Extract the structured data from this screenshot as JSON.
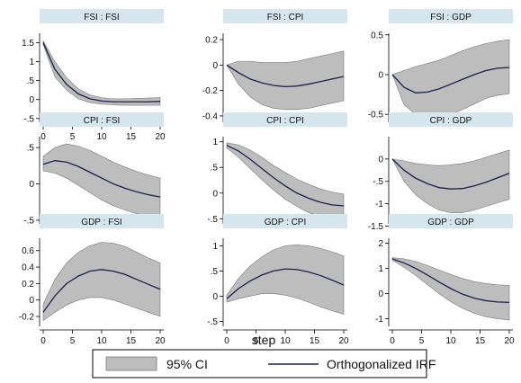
{
  "chart_data": {
    "type": "line",
    "xlabel": "step",
    "legend": {
      "placement": "bottom-center",
      "entries": [
        {
          "label": "95% CI",
          "kind": "band",
          "color": "#bdbdbd"
        },
        {
          "label": "Orthogonalized IRF",
          "kind": "line",
          "color": "#1a1f4d"
        }
      ]
    },
    "colors": {
      "band": "#bdbdbd",
      "band_edge": "#7a7a7a",
      "line": "#1a1f4d",
      "header": "#d6e6ee"
    },
    "grid": false,
    "panels": [
      {
        "title": "FSI : FSI",
        "ylim": [
          -0.6,
          1.75
        ],
        "yticks": [
          -0.5,
          0,
          0.5,
          1,
          1.5
        ],
        "ytick_labels": [
          "-.5",
          "0",
          ".5",
          "1",
          "1.5"
        ],
        "xticks": [
          0,
          5,
          10,
          15,
          20
        ],
        "x": [
          0,
          2,
          4,
          6,
          8,
          10,
          12,
          14,
          16,
          18,
          20
        ],
        "irf": [
          1.5,
          0.8,
          0.4,
          0.15,
          0.02,
          -0.04,
          -0.06,
          -0.06,
          -0.06,
          -0.06,
          -0.05
        ],
        "lower": [
          1.45,
          0.6,
          0.25,
          0.02,
          -0.08,
          -0.12,
          -0.14,
          -0.15,
          -0.15,
          -0.15,
          -0.15
        ],
        "upper": [
          1.55,
          1.0,
          0.58,
          0.28,
          0.12,
          0.05,
          0.02,
          0.02,
          0.03,
          0.04,
          0.05
        ]
      },
      {
        "title": "FSI : CPI",
        "ylim": [
          -0.45,
          0.25
        ],
        "yticks": [
          -0.4,
          -0.2,
          0,
          0.2
        ],
        "ytick_labels": [
          "-0.4",
          "-0.2",
          "0",
          "0.2"
        ],
        "xticks": [],
        "x": [
          0,
          2,
          4,
          6,
          8,
          10,
          12,
          14,
          16,
          18,
          20
        ],
        "irf": [
          0,
          -0.06,
          -0.11,
          -0.14,
          -0.16,
          -0.17,
          -0.165,
          -0.15,
          -0.13,
          -0.11,
          -0.09
        ],
        "lower": [
          0,
          -0.15,
          -0.25,
          -0.31,
          -0.34,
          -0.35,
          -0.35,
          -0.34,
          -0.32,
          -0.3,
          -0.28
        ],
        "upper": [
          0,
          0.03,
          0.03,
          0.02,
          0.02,
          0.02,
          0.03,
          0.05,
          0.07,
          0.09,
          0.11
        ]
      },
      {
        "title": "FSI : GDP",
        "ylim": [
          -0.6,
          0.52
        ],
        "yticks": [
          -0.5,
          0,
          0.5
        ],
        "ytick_labels": [
          "-0.5",
          "0",
          "0.5"
        ],
        "xticks": [],
        "x": [
          0,
          2,
          4,
          6,
          8,
          10,
          12,
          14,
          16,
          18,
          20
        ],
        "irf": [
          0,
          -0.16,
          -0.23,
          -0.22,
          -0.18,
          -0.12,
          -0.06,
          0.0,
          0.05,
          0.08,
          0.09
        ],
        "lower": [
          0,
          -0.38,
          -0.5,
          -0.55,
          -0.55,
          -0.5,
          -0.44,
          -0.37,
          -0.3,
          -0.26,
          -0.24
        ],
        "upper": [
          0,
          0.05,
          0.1,
          0.14,
          0.18,
          0.24,
          0.3,
          0.35,
          0.39,
          0.42,
          0.44
        ]
      },
      {
        "title": "CPI : FSI",
        "ylim": [
          -0.55,
          0.65
        ],
        "yticks": [
          -0.5,
          0,
          0.5
        ],
        "ytick_labels": [
          "-.5",
          "0",
          ".5"
        ],
        "xticks": [],
        "x": [
          0,
          2,
          4,
          6,
          8,
          10,
          12,
          14,
          16,
          18,
          20
        ],
        "irf": [
          0.27,
          0.32,
          0.3,
          0.24,
          0.16,
          0.08,
          0.0,
          -0.06,
          -0.11,
          -0.15,
          -0.18
        ],
        "lower": [
          0.18,
          0.15,
          0.08,
          -0.02,
          -0.12,
          -0.22,
          -0.3,
          -0.36,
          -0.41,
          -0.44,
          -0.47
        ],
        "upper": [
          0.38,
          0.5,
          0.55,
          0.52,
          0.46,
          0.38,
          0.3,
          0.23,
          0.17,
          0.12,
          0.08
        ]
      },
      {
        "title": "CPI : CPI",
        "ylim": [
          -0.6,
          1.1
        ],
        "yticks": [
          -0.5,
          0,
          0.5,
          1
        ],
        "ytick_labels": [
          "-.5",
          "0",
          ".5",
          "1"
        ],
        "xticks": [],
        "x": [
          0,
          2,
          4,
          6,
          8,
          10,
          12,
          14,
          16,
          18,
          20
        ],
        "irf": [
          0.93,
          0.82,
          0.66,
          0.48,
          0.3,
          0.14,
          0.0,
          -0.1,
          -0.18,
          -0.23,
          -0.25
        ],
        "lower": [
          0.88,
          0.7,
          0.48,
          0.26,
          0.06,
          -0.12,
          -0.26,
          -0.38,
          -0.46,
          -0.51,
          -0.54
        ],
        "upper": [
          0.98,
          0.94,
          0.84,
          0.7,
          0.54,
          0.4,
          0.27,
          0.17,
          0.08,
          0.02,
          -0.02
        ]
      },
      {
        "title": "CPI : GDP",
        "ylim": [
          -1.45,
          0.5
        ],
        "yticks": [
          -1.5,
          -1,
          -0.5,
          0
        ],
        "ytick_labels": [
          "-1.5",
          "-1",
          "-.5",
          "0"
        ],
        "xticks": [],
        "x": [
          0,
          2,
          4,
          6,
          8,
          10,
          12,
          14,
          16,
          18,
          20
        ],
        "irf": [
          0,
          -0.25,
          -0.43,
          -0.55,
          -0.64,
          -0.67,
          -0.66,
          -0.6,
          -0.52,
          -0.42,
          -0.32
        ],
        "lower": [
          0,
          -0.5,
          -0.8,
          -1.0,
          -1.14,
          -1.2,
          -1.2,
          -1.14,
          -1.06,
          -0.98,
          -0.9
        ],
        "upper": [
          0,
          -0.04,
          -0.1,
          -0.13,
          -0.15,
          -0.13,
          -0.1,
          -0.04,
          0.04,
          0.12,
          0.2
        ]
      },
      {
        "title": "GDP : FSI",
        "ylim": [
          -0.32,
          0.75
        ],
        "yticks": [
          -0.2,
          0,
          0.2,
          0.4,
          0.6
        ],
        "ytick_labels": [
          "-0.2",
          "0",
          "0.2",
          "0.4",
          "0.6"
        ],
        "xticks": [
          0,
          5,
          10,
          15,
          20
        ],
        "x": [
          0,
          2,
          4,
          6,
          8,
          10,
          12,
          14,
          16,
          18,
          20
        ],
        "irf": [
          -0.15,
          0.05,
          0.2,
          0.29,
          0.35,
          0.37,
          0.35,
          0.31,
          0.25,
          0.19,
          0.13
        ],
        "lower": [
          -0.25,
          -0.15,
          -0.06,
          0.0,
          0.03,
          0.03,
          0.0,
          -0.05,
          -0.1,
          -0.15,
          -0.2
        ],
        "upper": [
          -0.05,
          0.25,
          0.45,
          0.58,
          0.66,
          0.7,
          0.69,
          0.65,
          0.58,
          0.51,
          0.45
        ]
      },
      {
        "title": "GDP : CPI",
        "ylim": [
          -0.6,
          1.15
        ],
        "yticks": [
          -0.5,
          0,
          0.5,
          1
        ],
        "ytick_labels": [
          "-.5",
          "0",
          ".5",
          "1"
        ],
        "xticks": [
          0,
          5,
          10,
          15,
          20
        ],
        "x": [
          0,
          2,
          4,
          6,
          8,
          10,
          12,
          14,
          16,
          18,
          20
        ],
        "irf": [
          -0.05,
          0.15,
          0.3,
          0.42,
          0.5,
          0.54,
          0.53,
          0.48,
          0.41,
          0.32,
          0.22
        ],
        "lower": [
          -0.12,
          -0.05,
          0.0,
          0.05,
          0.05,
          0.02,
          -0.04,
          -0.12,
          -0.21,
          -0.29,
          -0.36
        ],
        "upper": [
          0.02,
          0.35,
          0.6,
          0.78,
          0.92,
          1.0,
          1.02,
          1.0,
          0.95,
          0.88,
          0.8
        ]
      },
      {
        "title": "GDP : GDP",
        "ylim": [
          -1.3,
          2.2
        ],
        "yticks": [
          -1,
          0,
          1,
          2
        ],
        "ytick_labels": [
          "-1",
          "0",
          "1",
          "2"
        ],
        "xticks": [
          0,
          5,
          10,
          15,
          20
        ],
        "x": [
          0,
          2,
          4,
          6,
          8,
          10,
          12,
          14,
          16,
          18,
          20
        ],
        "irf": [
          1.38,
          1.22,
          1.0,
          0.74,
          0.46,
          0.2,
          -0.02,
          -0.18,
          -0.28,
          -0.33,
          -0.35
        ],
        "lower": [
          1.33,
          1.05,
          0.72,
          0.36,
          0.0,
          -0.32,
          -0.58,
          -0.78,
          -0.92,
          -1.0,
          -1.05
        ],
        "upper": [
          1.43,
          1.38,
          1.28,
          1.12,
          0.94,
          0.76,
          0.6,
          0.48,
          0.4,
          0.35,
          0.33
        ]
      }
    ]
  }
}
